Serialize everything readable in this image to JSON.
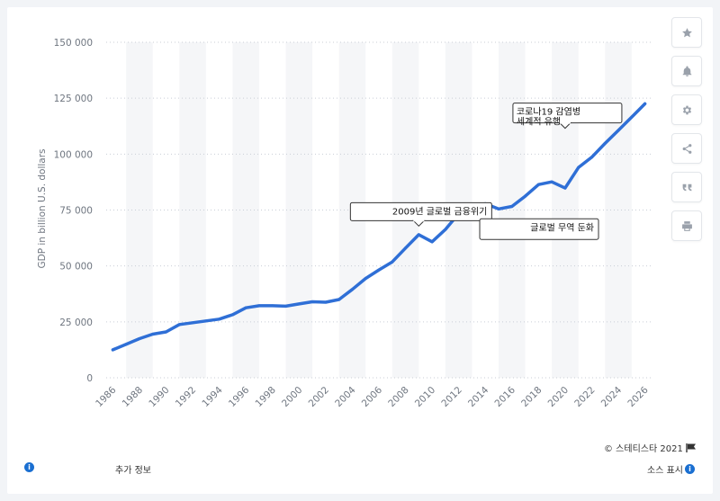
{
  "chart_data": {
    "type": "line",
    "ylabel": "GDP in billion U.S. dollars",
    "xlabel": "",
    "ylim": [
      0,
      150000
    ],
    "xlim": [
      1985.5,
      2026.5
    ],
    "y_ticks": [
      "0",
      "25 000",
      "50 000",
      "75 000",
      "100 000",
      "125 000",
      "150 000"
    ],
    "x_ticks": [
      "1986",
      "1988",
      "1990",
      "1992",
      "1994",
      "1996",
      "1998",
      "2000",
      "2002",
      "2004",
      "2006",
      "2008",
      "2010",
      "2012",
      "2014",
      "2016",
      "2018",
      "2020",
      "2022",
      "2024",
      "2026"
    ],
    "grid": true,
    "series": [
      {
        "color": "#2f6fd6",
        "x": [
          1986,
          1987,
          1988,
          1989,
          1990,
          1991,
          1992,
          1993,
          1994,
          1995,
          1996,
          1997,
          1998,
          1999,
          2000,
          2001,
          2002,
          2003,
          2004,
          2005,
          2006,
          2007,
          2008,
          2009,
          2010,
          2011,
          2012,
          2013,
          2014,
          2015,
          2016,
          2017,
          2018,
          2019,
          2020,
          2021,
          2022,
          2023,
          2024,
          2025,
          2026
        ],
        "values": [
          12500,
          15000,
          17500,
          19500,
          20500,
          23800,
          24600,
          25400,
          26200,
          28200,
          31300,
          32200,
          32200,
          32000,
          33000,
          34000,
          33800,
          35000,
          39500,
          44400,
          48200,
          51800,
          58000,
          64000,
          60800,
          66300,
          73400,
          75500,
          77800,
          75500,
          76600,
          81200,
          86400,
          87600,
          84800,
          94000,
          98600,
          104800,
          110600,
          116500,
          122500
        ]
      }
    ],
    "annotations": [
      {
        "text": "2009년 글로벌 금융위기",
        "x": 2009,
        "y": 61000
      },
      {
        "text": "글로벌 무역 둔화",
        "x": 2015,
        "y": 75500
      },
      {
        "text": "코로나19 감염병\n세계적 유행",
        "x": 2020,
        "y": 85000
      }
    ]
  },
  "toolbar": {
    "icons": [
      "star-icon",
      "bell-icon",
      "gear-icon",
      "share-icon",
      "quote-icon",
      "print-icon"
    ]
  },
  "footer": {
    "copyright": "© 스테티스타 2021",
    "more_info": "추가 정보",
    "source": "소스 표시",
    "info_glyph": "i"
  }
}
